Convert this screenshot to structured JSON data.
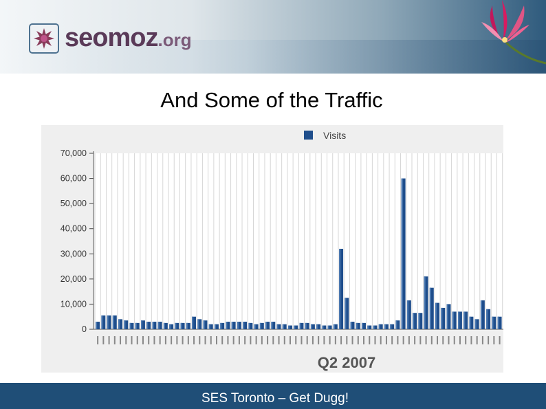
{
  "header": {
    "logo_text": "seomoz",
    "logo_suffix": ".org"
  },
  "slide": {
    "title": "And Some of the Traffic"
  },
  "footer": {
    "text": "SES Toronto – Get Dugg!"
  },
  "colors": {
    "bar": "#1f4e8c",
    "footer": "#1f4e77",
    "logo": "#5a3a58"
  },
  "chart_data": {
    "type": "bar",
    "legend": [
      "Visits"
    ],
    "legend_position": "top-center",
    "xlabel": "Q2 2007",
    "ylim": [
      0,
      70000
    ],
    "yticks": [
      "0",
      "10,000",
      "20,000",
      "30,000",
      "40,000",
      "50,000",
      "60,000",
      "70,000"
    ],
    "grid": true,
    "series": [
      {
        "name": "Visits",
        "values": [
          3000,
          5500,
          5500,
          5500,
          4000,
          3500,
          2500,
          2500,
          3500,
          3000,
          3000,
          3000,
          2500,
          2000,
          2500,
          2500,
          2500,
          5000,
          4000,
          3500,
          2000,
          2000,
          2500,
          3000,
          3000,
          3000,
          3000,
          2500,
          2000,
          2500,
          3000,
          3000,
          2000,
          2000,
          1500,
          1500,
          2500,
          2500,
          2000,
          2000,
          1500,
          1500,
          2000,
          32000,
          12500,
          3000,
          2500,
          2500,
          1500,
          1500,
          2000,
          2000,
          2000,
          3500,
          60000,
          11500,
          6500,
          6500,
          21000,
          16500,
          10500,
          8500,
          10000,
          7000,
          7000,
          7000,
          5000,
          4000,
          11500,
          8000,
          5000,
          5000
        ]
      }
    ]
  }
}
